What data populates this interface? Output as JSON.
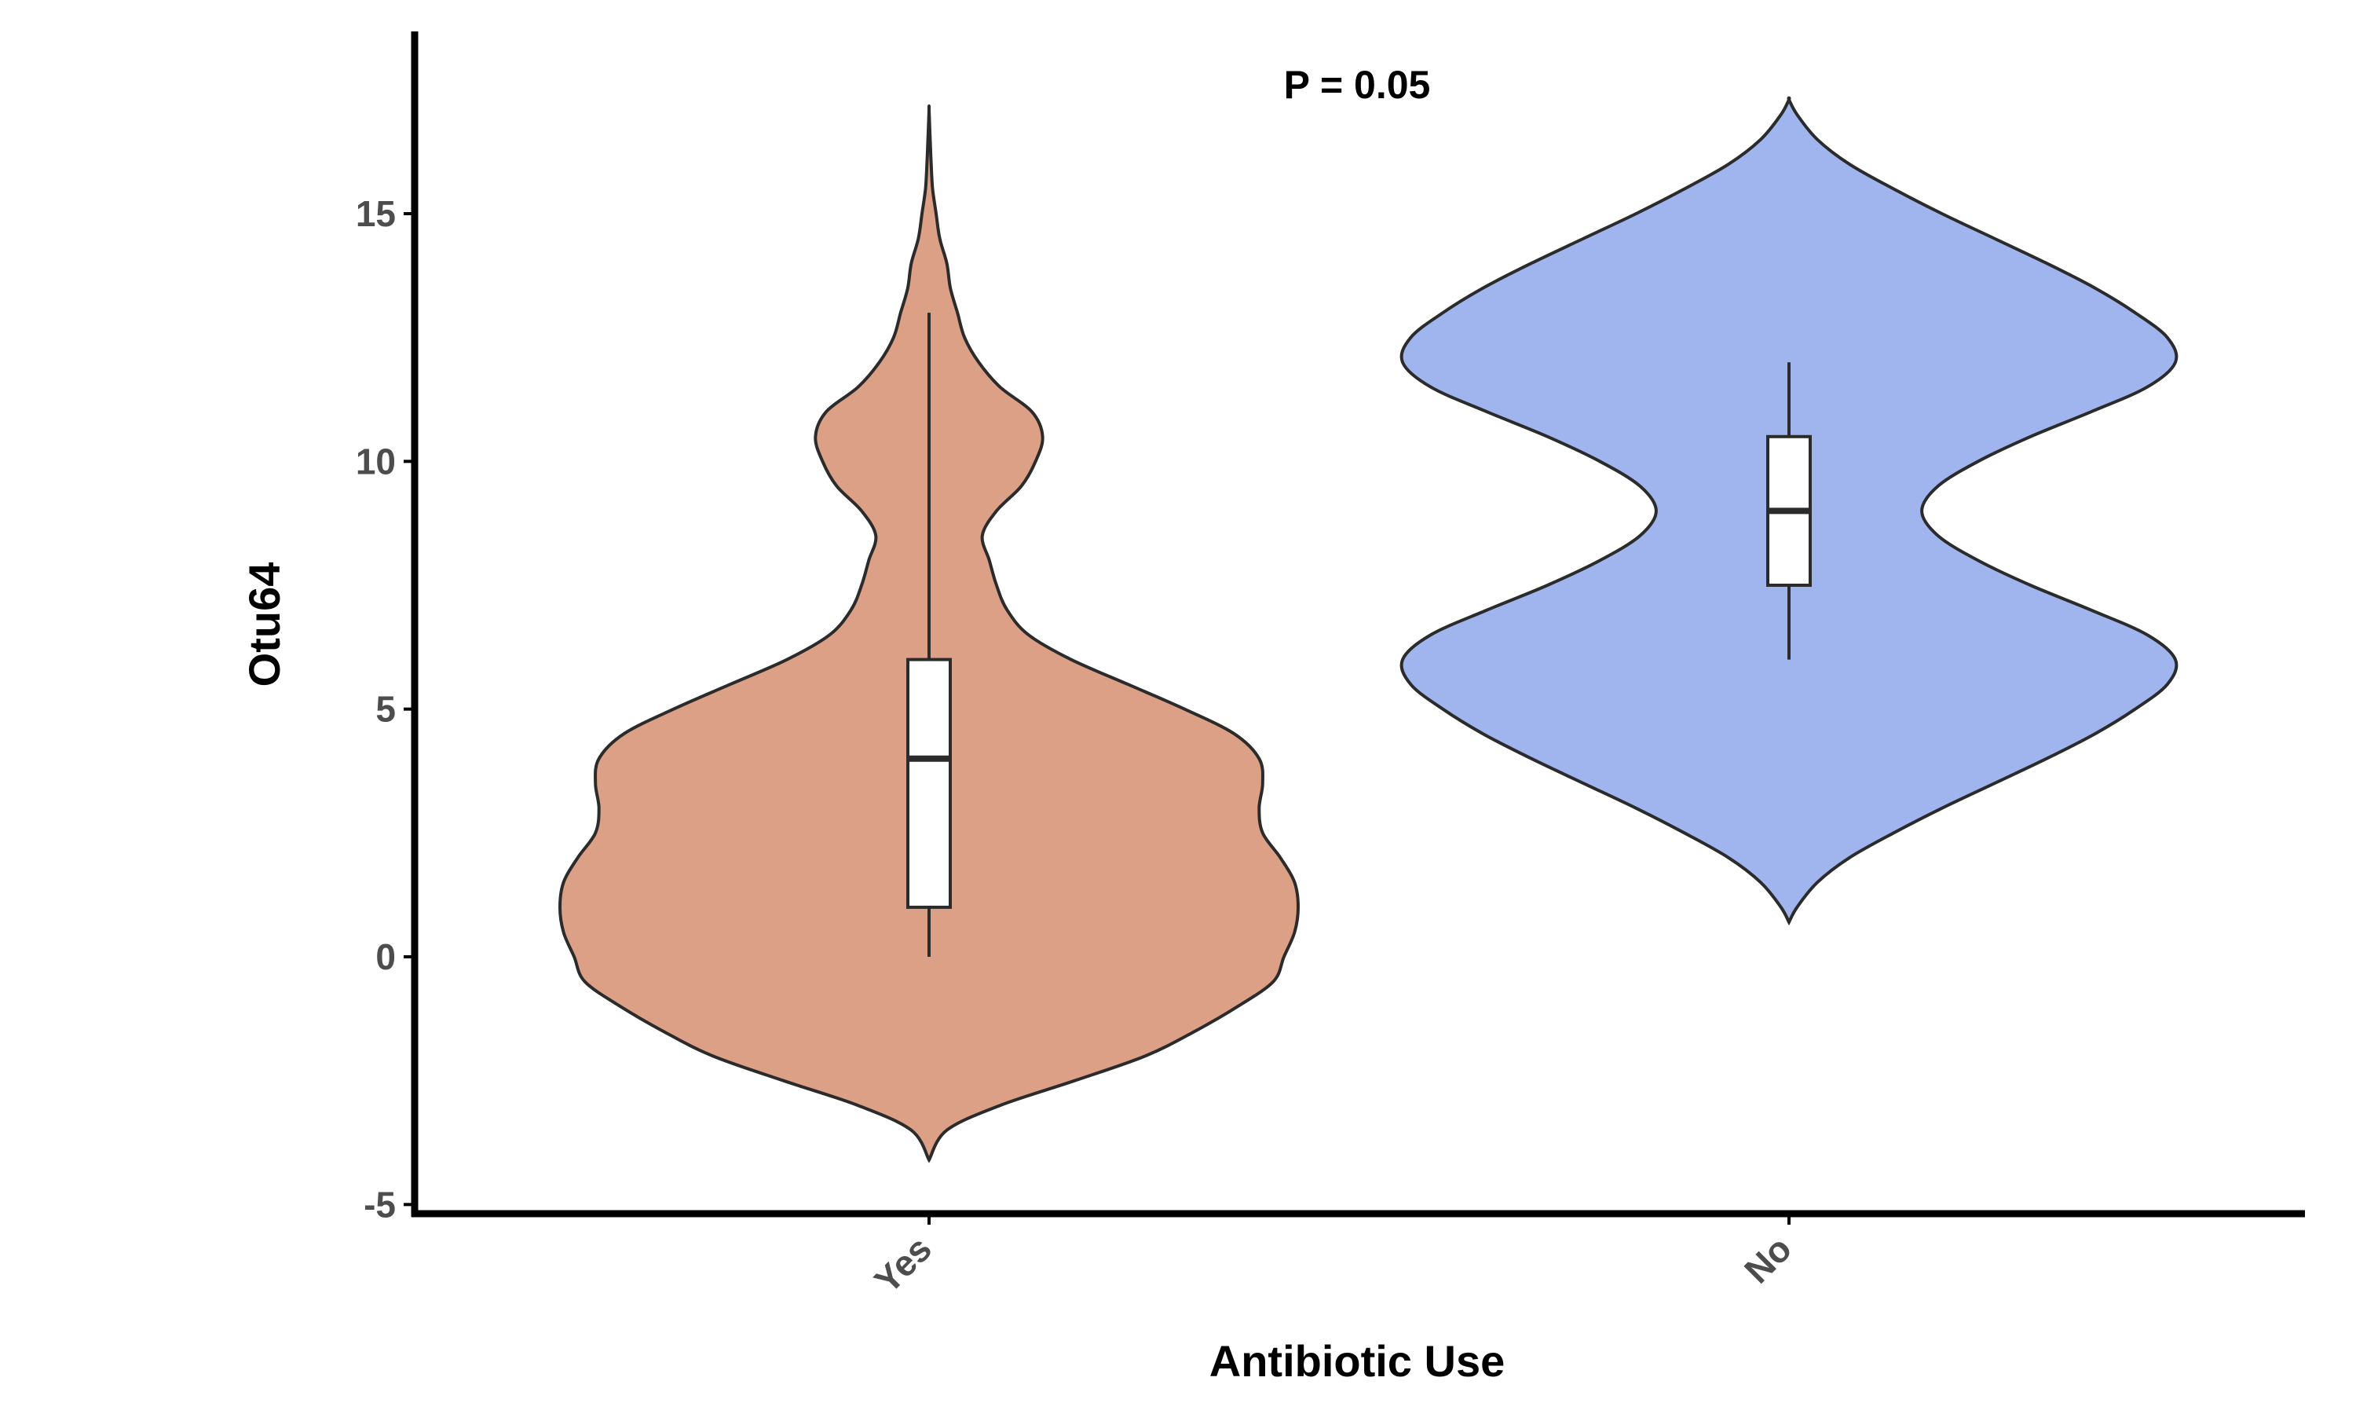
{
  "chart_data": {
    "type": "violin",
    "title": "",
    "xlabel": "Antibiotic Use",
    "ylabel": "Otu64",
    "ylim": [
      -5,
      18.5
    ],
    "yticks": [
      -5,
      0,
      5,
      10,
      15
    ],
    "ytick_labels": [
      "-5",
      "0",
      "5",
      "10",
      "15"
    ],
    "categories": [
      "Yes",
      "No"
    ],
    "annotation": "P = 0.05",
    "grid": false,
    "legend": "none",
    "series": [
      {
        "category": "Yes",
        "color": "#dca087",
        "violin_range": [
          -4.1,
          17.1
        ],
        "box": {
          "min": 0,
          "q1": 1,
          "median": 4,
          "q3": 6,
          "max": 13
        },
        "density": [
          [
            -4.1,
            0.0
          ],
          [
            -3.5,
            0.05
          ],
          [
            -3.0,
            0.2
          ],
          [
            -2.5,
            0.41
          ],
          [
            -2.0,
            0.61
          ],
          [
            -1.5,
            0.75
          ],
          [
            -1.0,
            0.87
          ],
          [
            -0.5,
            0.97
          ],
          [
            0.0,
            1.0
          ],
          [
            0.5,
            1.03
          ],
          [
            1.0,
            1.04
          ],
          [
            1.5,
            1.03
          ],
          [
            2.0,
            0.99
          ],
          [
            2.5,
            0.94
          ],
          [
            3.0,
            0.93
          ],
          [
            3.5,
            0.94
          ],
          [
            4.0,
            0.93
          ],
          [
            4.5,
            0.86
          ],
          [
            5.0,
            0.72
          ],
          [
            5.5,
            0.56
          ],
          [
            6.0,
            0.4
          ],
          [
            6.5,
            0.28
          ],
          [
            7.0,
            0.22
          ],
          [
            7.5,
            0.19
          ],
          [
            8.0,
            0.17
          ],
          [
            8.5,
            0.15
          ],
          [
            9.0,
            0.19
          ],
          [
            9.5,
            0.26
          ],
          [
            10.0,
            0.3
          ],
          [
            10.5,
            0.32
          ],
          [
            11.0,
            0.29
          ],
          [
            11.5,
            0.2
          ],
          [
            12.0,
            0.14
          ],
          [
            12.5,
            0.1
          ],
          [
            13.0,
            0.08
          ],
          [
            13.5,
            0.06
          ],
          [
            14.0,
            0.05
          ],
          [
            14.5,
            0.03
          ],
          [
            15.0,
            0.02
          ],
          [
            15.5,
            0.01
          ],
          [
            16.0,
            0.006
          ],
          [
            16.5,
            0.003
          ],
          [
            17.1,
            0.0
          ]
        ]
      },
      {
        "category": "No",
        "color": "#a0b4ee",
        "violin_range": [
          0.7,
          17.3
        ],
        "box": {
          "min": 6,
          "q1": 7.5,
          "median": 9,
          "q3": 10.5,
          "max": 12
        },
        "density": [
          [
            0.7,
            0.0
          ],
          [
            1.0,
            0.02
          ],
          [
            1.5,
            0.07
          ],
          [
            2.0,
            0.15
          ],
          [
            2.5,
            0.26
          ],
          [
            3.0,
            0.38
          ],
          [
            3.5,
            0.51
          ],
          [
            4.0,
            0.64
          ],
          [
            4.5,
            0.76
          ],
          [
            5.0,
            0.86
          ],
          [
            5.5,
            0.94
          ],
          [
            6.0,
            0.96
          ],
          [
            6.5,
            0.89
          ],
          [
            7.0,
            0.75
          ],
          [
            7.5,
            0.6
          ],
          [
            8.0,
            0.47
          ],
          [
            8.5,
            0.37
          ],
          [
            9.0,
            0.33
          ],
          [
            9.5,
            0.37
          ],
          [
            10.0,
            0.47
          ],
          [
            10.5,
            0.6
          ],
          [
            11.0,
            0.75
          ],
          [
            11.5,
            0.89
          ],
          [
            12.0,
            0.96
          ],
          [
            12.5,
            0.94
          ],
          [
            13.0,
            0.86
          ],
          [
            13.5,
            0.76
          ],
          [
            14.0,
            0.64
          ],
          [
            14.5,
            0.51
          ],
          [
            15.0,
            0.38
          ],
          [
            15.5,
            0.26
          ],
          [
            16.0,
            0.15
          ],
          [
            16.5,
            0.07
          ],
          [
            17.0,
            0.02
          ],
          [
            17.3,
            0.0
          ]
        ]
      }
    ]
  }
}
